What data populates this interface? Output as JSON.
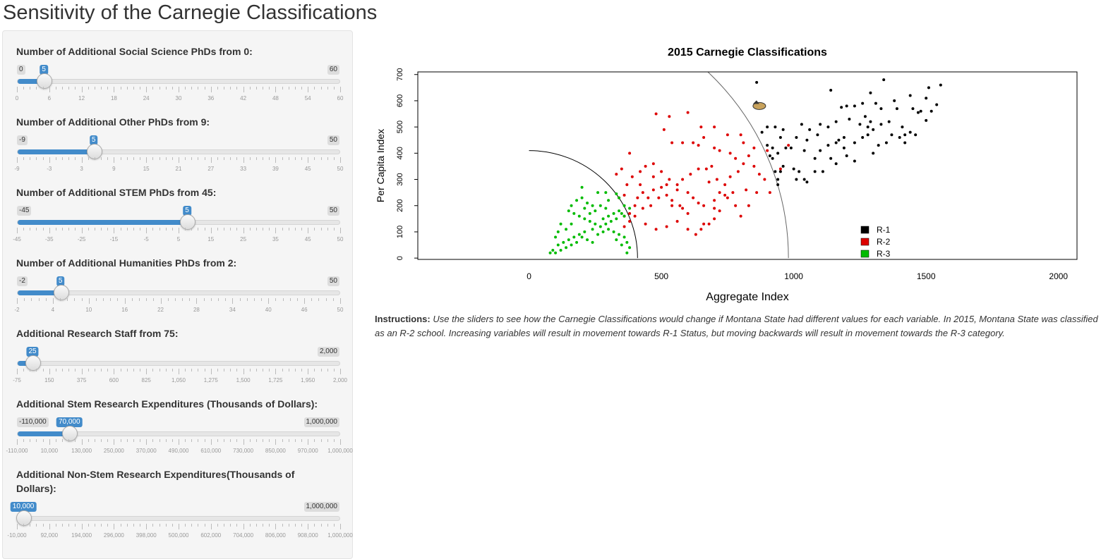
{
  "page": {
    "title": "Sensitivity of the Carnegie Classifications"
  },
  "sliders": [
    {
      "id": "social-science-phds",
      "label": "Number of Additional Social Science PhDs from 0:",
      "min": 0,
      "max": 60,
      "value": 5,
      "min_label": "0",
      "max_label": "60",
      "value_label": "5",
      "ticks": [
        "0",
        "6",
        "12",
        "18",
        "24",
        "30",
        "36",
        "42",
        "48",
        "54",
        "60"
      ],
      "minor_per_major": 5
    },
    {
      "id": "other-phds",
      "label": "Number of Additional Other PhDs from 9:",
      "min": -9,
      "max": 50,
      "value": 5,
      "min_label": "-9",
      "max_label": "50",
      "value_label": "5",
      "ticks": [
        "-9",
        "-3",
        "3",
        "9",
        "15",
        "21",
        "27",
        "33",
        "39",
        "45",
        "50"
      ],
      "minor_per_major": 5
    },
    {
      "id": "stem-phds",
      "label": "Number of Additional STEM PhDs from 45:",
      "min": -45,
      "max": 50,
      "value": 5,
      "min_label": "-45",
      "max_label": "50",
      "value_label": "5",
      "ticks": [
        "-45",
        "-35",
        "-25",
        "-15",
        "-5",
        "5",
        "15",
        "25",
        "35",
        "45",
        "50"
      ],
      "minor_per_major": 5
    },
    {
      "id": "humanities-phds",
      "label": "Number of Additional Humanities PhDs from 2:",
      "min": -2,
      "max": 50,
      "value": 5,
      "min_label": "-2",
      "max_label": "50",
      "value_label": "5",
      "ticks": [
        "-2",
        "4",
        "10",
        "16",
        "22",
        "28",
        "34",
        "40",
        "46",
        "50"
      ],
      "minor_per_major": 5
    },
    {
      "id": "research-staff",
      "label": "Additional Research Staff from 75:",
      "min": -75,
      "max": 2000,
      "value": 25,
      "min_label": "",
      "max_label": "2,000",
      "value_label": "25",
      "ticks": [
        "-75",
        "150",
        "375",
        "600",
        "825",
        "1,050",
        "1,275",
        "1,500",
        "1,725",
        "1,950",
        "2,000"
      ],
      "minor_per_major": 5
    },
    {
      "id": "stem-expenditures",
      "label": "Additional Stem Research Expenditures (Thousands of Dollars):",
      "min": -110000,
      "max": 1000000,
      "value": 70000,
      "min_label": "-110,000",
      "max_label": "1,000,000",
      "value_label": "70,000",
      "ticks": [
        "-110,000",
        "10,000",
        "130,000",
        "250,000",
        "370,000",
        "490,000",
        "610,000",
        "730,000",
        "850,000",
        "970,000",
        "1,000,000"
      ],
      "minor_per_major": 5
    },
    {
      "id": "non-stem-expenditures",
      "label": "Additional Non-Stem Research Expenditures(Thousands of Dollars):",
      "min": -10000,
      "max": 1000000,
      "value": 10000,
      "min_label": "",
      "max_label": "1,000,000",
      "value_label": "10,000",
      "ticks": [
        "-10,000",
        "92,000",
        "194,000",
        "296,000",
        "398,000",
        "500,000",
        "602,000",
        "704,000",
        "806,000",
        "908,000",
        "1,000,000"
      ],
      "minor_per_major": 5
    }
  ],
  "chart_data": {
    "type": "scatter",
    "title": "2015 Carnegie Classifications",
    "xlabel": "Aggregate Index",
    "ylabel": "Per Capita Index",
    "xlim": [
      -420,
      2070
    ],
    "ylim": [
      -5,
      710
    ],
    "xticks": [
      0,
      500,
      1000,
      1500,
      2000
    ],
    "yticks": [
      0,
      100,
      200,
      300,
      400,
      500,
      600,
      700
    ],
    "legend_position": "bottom-right",
    "series": [
      {
        "name": "R-1",
        "color": "#000000",
        "points": [
          [
            860,
            670
          ],
          [
            1340,
            680
          ],
          [
            1510,
            650
          ],
          [
            1555,
            660
          ],
          [
            1140,
            640
          ],
          [
            1290,
            630
          ],
          [
            1500,
            610
          ],
          [
            1440,
            620
          ],
          [
            1380,
            600
          ],
          [
            1310,
            590
          ],
          [
            1260,
            590
          ],
          [
            1230,
            580
          ],
          [
            1200,
            580
          ],
          [
            1180,
            575
          ],
          [
            1330,
            570
          ],
          [
            1390,
            570
          ],
          [
            1450,
            570
          ],
          [
            1470,
            555
          ],
          [
            1540,
            585
          ],
          [
            1520,
            560
          ],
          [
            1500,
            525
          ],
          [
            1480,
            560
          ],
          [
            1270,
            540
          ],
          [
            1250,
            510
          ],
          [
            1210,
            530
          ],
          [
            1160,
            520
          ],
          [
            1130,
            500
          ],
          [
            1100,
            510
          ],
          [
            1090,
            470
          ],
          [
            1060,
            490
          ],
          [
            1030,
            510
          ],
          [
            1010,
            460
          ],
          [
            960,
            490
          ],
          [
            930,
            500
          ],
          [
            900,
            500
          ],
          [
            880,
            480
          ],
          [
            950,
            460
          ],
          [
            990,
            420
          ],
          [
            970,
            420
          ],
          [
            940,
            400
          ],
          [
            920,
            420
          ],
          [
            900,
            430
          ],
          [
            910,
            390
          ],
          [
            920,
            380
          ],
          [
            950,
            330
          ],
          [
            930,
            330
          ],
          [
            960,
            350
          ],
          [
            1000,
            340
          ],
          [
            1010,
            300
          ],
          [
            940,
            300
          ],
          [
            940,
            280
          ],
          [
            1040,
            410
          ],
          [
            1080,
            380
          ],
          [
            1100,
            410
          ],
          [
            1140,
            380
          ],
          [
            1160,
            360
          ],
          [
            1200,
            390
          ],
          [
            1230,
            440
          ],
          [
            1260,
            460
          ],
          [
            1280,
            470
          ],
          [
            1300,
            490
          ],
          [
            1320,
            430
          ],
          [
            1350,
            440
          ],
          [
            1370,
            470
          ],
          [
            1400,
            460
          ],
          [
            1420,
            470
          ],
          [
            1440,
            480
          ],
          [
            1190,
            460
          ],
          [
            1170,
            450
          ],
          [
            1040,
            300
          ],
          [
            1050,
            290
          ],
          [
            1020,
            330
          ],
          [
            1080,
            330
          ],
          [
            1110,
            330
          ],
          [
            1230,
            370
          ],
          [
            1190,
            420
          ],
          [
            1300,
            400
          ],
          [
            1420,
            440
          ],
          [
            1460,
            470
          ],
          [
            1360,
            520
          ],
          [
            1410,
            500
          ],
          [
            1330,
            510
          ],
          [
            1280,
            500
          ],
          [
            1290,
            520
          ],
          [
            1050,
            450
          ],
          [
            1130,
            430
          ],
          [
            1160,
            440
          ]
        ]
      },
      {
        "name": "R-2",
        "color": "#dd0000",
        "points": [
          [
            480,
            550
          ],
          [
            530,
            540
          ],
          [
            600,
            555
          ],
          [
            650,
            500
          ],
          [
            700,
            500
          ],
          [
            660,
            460
          ],
          [
            510,
            490
          ],
          [
            580,
            440
          ],
          [
            540,
            440
          ],
          [
            640,
            430
          ],
          [
            620,
            440
          ],
          [
            700,
            420
          ],
          [
            750,
            470
          ],
          [
            800,
            470
          ],
          [
            850,
            420
          ],
          [
            810,
            440
          ],
          [
            780,
            380
          ],
          [
            760,
            400
          ],
          [
            720,
            410
          ],
          [
            690,
            350
          ],
          [
            670,
            340
          ],
          [
            640,
            340
          ],
          [
            610,
            320
          ],
          [
            580,
            300
          ],
          [
            560,
            280
          ],
          [
            520,
            280
          ],
          [
            500,
            270
          ],
          [
            470,
            260
          ],
          [
            450,
            230
          ],
          [
            430,
            250
          ],
          [
            410,
            230
          ],
          [
            400,
            200
          ],
          [
            380,
            170
          ],
          [
            360,
            160
          ],
          [
            340,
            230
          ],
          [
            360,
            240
          ],
          [
            370,
            280
          ],
          [
            390,
            310
          ],
          [
            420,
            330
          ],
          [
            440,
            350
          ],
          [
            470,
            360
          ],
          [
            500,
            330
          ],
          [
            530,
            300
          ],
          [
            560,
            260
          ],
          [
            600,
            250
          ],
          [
            620,
            230
          ],
          [
            640,
            210
          ],
          [
            660,
            200
          ],
          [
            700,
            220
          ],
          [
            720,
            250
          ],
          [
            740,
            280
          ],
          [
            760,
            310
          ],
          [
            790,
            330
          ],
          [
            810,
            360
          ],
          [
            830,
            390
          ],
          [
            850,
            350
          ],
          [
            870,
            320
          ],
          [
            890,
            300
          ],
          [
            860,
            250
          ],
          [
            830,
            200
          ],
          [
            800,
            160
          ],
          [
            780,
            200
          ],
          [
            750,
            230
          ],
          [
            720,
            180
          ],
          [
            700,
            150
          ],
          [
            680,
            130
          ],
          [
            650,
            110
          ],
          [
            600,
            170
          ],
          [
            570,
            200
          ],
          [
            540,
            220
          ],
          [
            520,
            240
          ],
          [
            490,
            230
          ],
          [
            460,
            200
          ],
          [
            430,
            190
          ],
          [
            400,
            160
          ],
          [
            380,
            140
          ],
          [
            360,
            120
          ],
          [
            440,
            130
          ],
          [
            480,
            110
          ],
          [
            520,
            120
          ],
          [
            560,
            140
          ],
          [
            600,
            110
          ],
          [
            630,
            90
          ],
          [
            660,
            130
          ],
          [
            700,
            190
          ],
          [
            740,
            240
          ],
          [
            770,
            250
          ],
          [
            820,
            260
          ],
          [
            910,
            250
          ],
          [
            950,
            340
          ],
          [
            980,
            430
          ],
          [
            900,
            410
          ],
          [
            380,
            400
          ],
          [
            350,
            340
          ],
          [
            330,
            320
          ],
          [
            420,
            280
          ],
          [
            470,
            310
          ],
          [
            540,
            200
          ],
          [
            580,
            190
          ],
          [
            680,
            290
          ],
          [
            710,
            300
          ]
        ]
      },
      {
        "name": "R-3",
        "color": "#00bb00",
        "points": [
          [
            200,
            270
          ],
          [
            260,
            250
          ],
          [
            290,
            250
          ],
          [
            330,
            245
          ],
          [
            340,
            230
          ],
          [
            300,
            220
          ],
          [
            270,
            200
          ],
          [
            240,
            200
          ],
          [
            220,
            210
          ],
          [
            200,
            230
          ],
          [
            180,
            220
          ],
          [
            160,
            200
          ],
          [
            150,
            180
          ],
          [
            170,
            170
          ],
          [
            190,
            160
          ],
          [
            210,
            150
          ],
          [
            230,
            140
          ],
          [
            250,
            130
          ],
          [
            280,
            150
          ],
          [
            300,
            160
          ],
          [
            320,
            170
          ],
          [
            340,
            180
          ],
          [
            350,
            170
          ],
          [
            360,
            160
          ],
          [
            330,
            150
          ],
          [
            310,
            140
          ],
          [
            290,
            130
          ],
          [
            270,
            120
          ],
          [
            240,
            110
          ],
          [
            210,
            100
          ],
          [
            190,
            90
          ],
          [
            170,
            80
          ],
          [
            150,
            70
          ],
          [
            130,
            60
          ],
          [
            110,
            50
          ],
          [
            90,
            30
          ],
          [
            80,
            20
          ],
          [
            100,
            20
          ],
          [
            120,
            30
          ],
          [
            140,
            40
          ],
          [
            160,
            50
          ],
          [
            180,
            60
          ],
          [
            200,
            80
          ],
          [
            220,
            70
          ],
          [
            240,
            60
          ],
          [
            260,
            90
          ],
          [
            280,
            100
          ],
          [
            300,
            110
          ],
          [
            320,
            100
          ],
          [
            340,
            90
          ],
          [
            360,
            80
          ],
          [
            370,
            60
          ],
          [
            380,
            40
          ],
          [
            370,
            20
          ],
          [
            350,
            50
          ],
          [
            330,
            70
          ],
          [
            250,
            180
          ],
          [
            230,
            170
          ],
          [
            210,
            190
          ],
          [
            120,
            130
          ],
          [
            140,
            110
          ],
          [
            110,
            100
          ],
          [
            100,
            80
          ],
          [
            160,
            130
          ],
          [
            360,
            200
          ],
          [
            380,
            190
          ],
          [
            290,
            190
          ]
        ]
      }
    ],
    "reference": {
      "montana_state": [
        870,
        580
      ]
    },
    "boundaries": [
      {
        "name": "inner",
        "center": [
          0,
          0
        ],
        "rx": 410,
        "ry": 410
      },
      {
        "name": "outer",
        "center": [
          0,
          0
        ],
        "rx": 980,
        "ry": 980
      }
    ]
  },
  "instructions": {
    "heading": "Instructions:",
    "text": "Use the sliders to see how the Carnegie Classifications would change if Montana State had different values for each variable. In 2015, Montana State was classified as an R-2 school. Increasing variables will result in movement towards R-1 Status, but moving backwards will result in movement towards the R-3 category."
  }
}
